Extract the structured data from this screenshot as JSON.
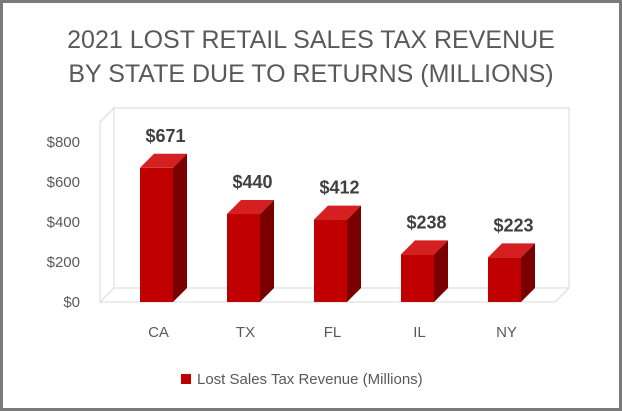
{
  "chart_data": {
    "type": "bar",
    "title_lines": [
      "2021 LOST RETAIL SALES TAX REVENUE",
      "BY STATE DUE TO RETURNS (MILLIONS)"
    ],
    "categories": [
      "CA",
      "TX",
      "FL",
      "IL",
      "NY"
    ],
    "series": [
      {
        "name": "Lost Sales Tax Revenue (Millions)",
        "values": [
          671,
          440,
          412,
          238,
          223
        ],
        "data_labels": [
          "$671",
          "$440",
          "$412",
          "$238",
          "$223"
        ]
      }
    ],
    "ylim": [
      0,
      800
    ],
    "yticks": [
      0,
      200,
      400,
      600,
      800
    ],
    "ytick_labels": [
      "$0",
      "$200",
      "$400",
      "$600",
      "$800"
    ],
    "grid": false,
    "legend_position": "bottom",
    "style": "3d-column",
    "colors": {
      "bar": "#c00000",
      "bar_top": "#d42020",
      "bar_side": "#7a0000",
      "border": "#7a7a7a"
    }
  }
}
